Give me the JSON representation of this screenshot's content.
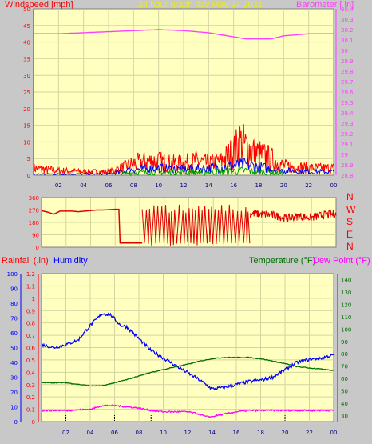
{
  "header": {
    "left_title": "Windspeed [mph]",
    "center_title": "24 hour graph day   May 14 2021",
    "right_title": "Barometer [ in]"
  },
  "compass": [
    "N",
    "W",
    "S",
    "E",
    "N"
  ],
  "lower_header": {
    "rain_label": "Rainfall (.in)",
    "humidity_label": "Humidity",
    "temp_label": "Temperature (°F)",
    "dew_label": "Dew Point (°F)"
  },
  "colors": {
    "bg": "#c8c8c8",
    "plot": "#ffffc0",
    "grid": "#d4d4a0",
    "wind": "#ff0000",
    "baro": "#ff40ff",
    "avg_wind": "#0000ff",
    "dir": "#e00000",
    "humidity": "#0000ff",
    "temp": "#007000",
    "dew": "#ff00ff",
    "rain_axis": "#0000cc",
    "temp_axis": "#007000"
  },
  "chart_data": [
    {
      "type": "line",
      "name": "wind",
      "x_ticks": [
        "02",
        "04",
        "06",
        "08",
        "10",
        "12",
        "14",
        "16",
        "18",
        "20",
        "22",
        "00"
      ],
      "y_left": {
        "ticks": [
          0,
          5,
          10,
          15,
          20,
          25,
          30,
          35,
          40,
          45,
          50
        ],
        "ylim": [
          0,
          50
        ]
      },
      "y_right": {
        "ticks": [
          "28.8",
          "28.9",
          "29",
          "29.1",
          "29.2",
          "29.3",
          "29.4",
          "29.5",
          "29.6",
          "29.7",
          "29.8",
          "29.9",
          "30",
          "30.1",
          "30.2",
          "30.3",
          "30.4"
        ],
        "ylim": [
          28.8,
          30.4
        ]
      },
      "gust_envelope": {
        "x": [
          0,
          2,
          4,
          6,
          7,
          8,
          9,
          10,
          11,
          12,
          13,
          14,
          15,
          16,
          16.5,
          17,
          18,
          19,
          20,
          22,
          24
        ],
        "y": [
          3,
          2,
          1.5,
          1.5,
          3,
          5,
          6,
          6,
          5,
          5,
          6,
          5,
          6,
          10,
          14,
          12,
          9,
          7,
          4,
          3,
          3
        ]
      },
      "avg_envelope": {
        "x": [
          0,
          6,
          7,
          8,
          10,
          12,
          14,
          16,
          17,
          18,
          20,
          22,
          24
        ],
        "y": [
          0.5,
          0.5,
          1.5,
          2.5,
          3,
          2.5,
          3,
          4,
          4.5,
          3.5,
          2,
          1.5,
          1.5
        ]
      },
      "barometer": {
        "x": [
          0,
          2,
          4,
          6,
          8,
          10,
          12,
          14,
          16,
          17,
          18,
          19,
          20,
          22,
          24
        ],
        "y": [
          30.16,
          30.16,
          30.17,
          30.18,
          30.19,
          30.2,
          30.19,
          30.17,
          30.13,
          30.11,
          30.11,
          30.11,
          30.14,
          30.16,
          30.16
        ]
      }
    },
    {
      "type": "line",
      "name": "wind_direction",
      "x_ticks": [
        "02",
        "04",
        "06",
        "08",
        "10",
        "12",
        "14",
        "16",
        "18",
        "20",
        "22",
        "00"
      ],
      "y_ticks": [
        0,
        90,
        180,
        270,
        360
      ],
      "ylim": [
        0,
        360
      ],
      "steady_segments": {
        "x": [
          0,
          0.5,
          1,
          1.5,
          2.5,
          3,
          4.5,
          5,
          6,
          6.3,
          6.4,
          8.2
        ],
        "y": [
          265,
          255,
          240,
          262,
          262,
          258,
          270,
          270,
          275,
          275,
          30,
          30
        ]
      },
      "late_band": {
        "x": [
          17,
          18,
          19,
          20,
          21,
          22,
          23,
          24
        ],
        "y": [
          245,
          240,
          230,
          210,
          225,
          215,
          235,
          240
        ]
      }
    },
    {
      "type": "line",
      "name": "temp_humidity",
      "x_ticks": [
        "02",
        "04",
        "06",
        "08",
        "10",
        "12",
        "14",
        "16",
        "18",
        "20",
        "22",
        "00"
      ],
      "rain_axis": {
        "ticks": [
          "0",
          "0.1",
          "0.2",
          "0.3",
          "0.4",
          "0.5",
          "0.6",
          "0.7",
          "0.8",
          "0.9",
          "1",
          "1.1",
          "1.2"
        ],
        "ylim": [
          0,
          1.2
        ]
      },
      "humidity_axis": {
        "ticks": [
          0,
          10,
          20,
          30,
          40,
          50,
          60,
          70,
          80,
          90,
          100
        ],
        "ylim": [
          0,
          100
        ]
      },
      "temp_axis": {
        "ticks": [
          30,
          40,
          50,
          60,
          70,
          80,
          90,
          100,
          110,
          120,
          130,
          140
        ],
        "ylim": [
          25,
          145
        ]
      },
      "humidity": {
        "x": [
          0,
          1,
          2,
          3,
          4,
          5,
          5.7,
          6.5,
          7,
          8,
          9,
          10,
          11,
          12,
          13,
          14,
          15,
          16,
          17,
          18,
          19,
          20,
          21,
          22,
          23,
          24
        ],
        "y": [
          52,
          50,
          52,
          55,
          65,
          73,
          72,
          65,
          64,
          56,
          48,
          43,
          38,
          33,
          28,
          22,
          23,
          25,
          27,
          28,
          30,
          35,
          40,
          42,
          43,
          45
        ]
      },
      "temperature": {
        "x": [
          0,
          2,
          4,
          5,
          6,
          7,
          8,
          9,
          10,
          11,
          12,
          13,
          14,
          15,
          16,
          17,
          18,
          19,
          20,
          21,
          22,
          23,
          24
        ],
        "y": [
          56.5,
          56.5,
          54,
          54,
          56.5,
          59,
          62,
          65,
          67,
          69.5,
          71.5,
          74,
          76,
          77,
          77,
          77,
          76,
          74,
          72,
          69.5,
          68.5,
          67.5,
          66.5
        ]
      },
      "dew_point": {
        "x": [
          0,
          2,
          4,
          5,
          6,
          7,
          8,
          9,
          10,
          11,
          12,
          13,
          13.5,
          14,
          15,
          16,
          17,
          18,
          19,
          20,
          21,
          22,
          24
        ],
        "y": [
          34,
          34,
          35,
          38,
          38,
          37,
          36,
          34,
          33,
          33,
          33,
          31,
          29,
          29,
          31,
          33,
          34,
          34,
          34,
          34,
          34,
          34,
          34
        ]
      }
    }
  ]
}
